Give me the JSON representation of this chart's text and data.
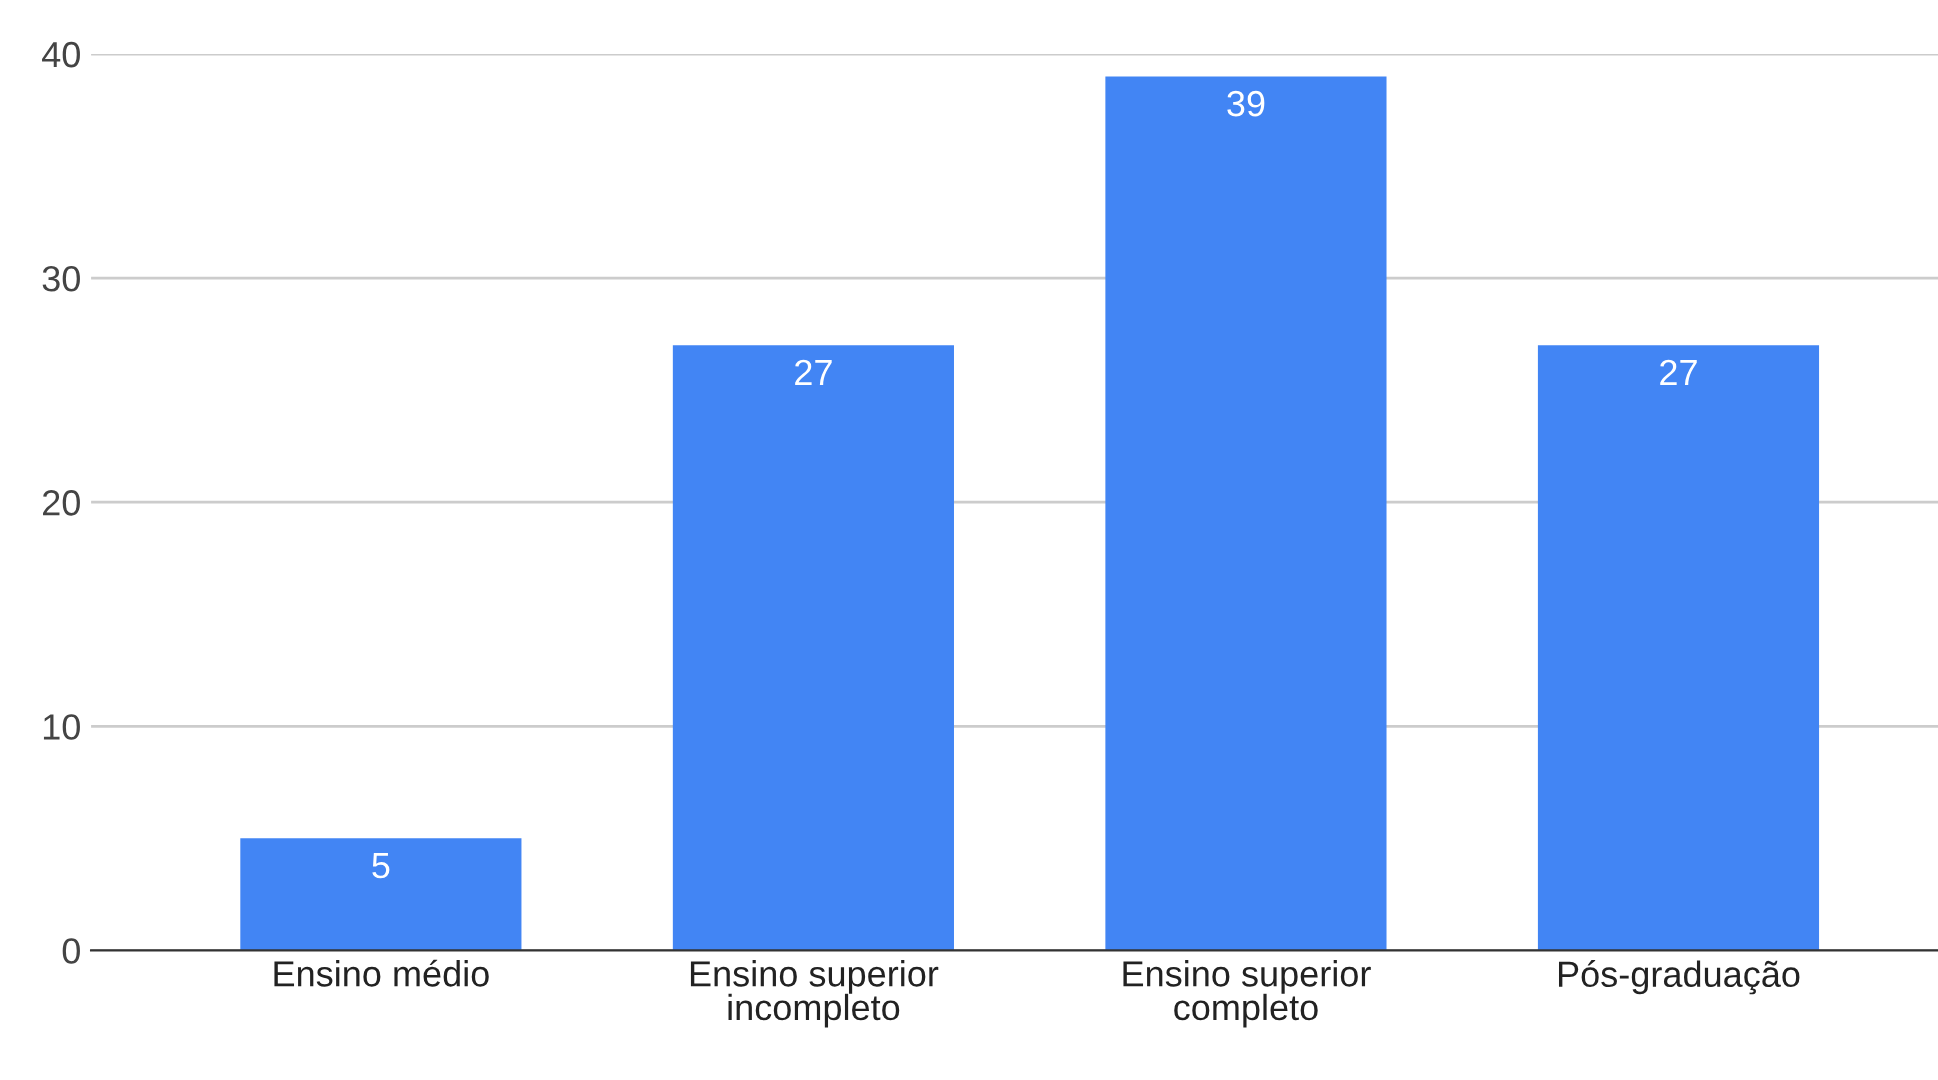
{
  "chart_data": {
    "type": "bar",
    "categories": [
      "Ensino médio",
      "Ensino superior\nincompleto",
      "Ensino superior\ncompleto",
      "Pós-graduação"
    ],
    "values": [
      5,
      27,
      39,
      27
    ],
    "color": "#4285f4",
    "ylim": [
      0,
      40
    ],
    "yticks": [
      0,
      10,
      20,
      30,
      40
    ],
    "grid": "y",
    "data_labels": true
  }
}
